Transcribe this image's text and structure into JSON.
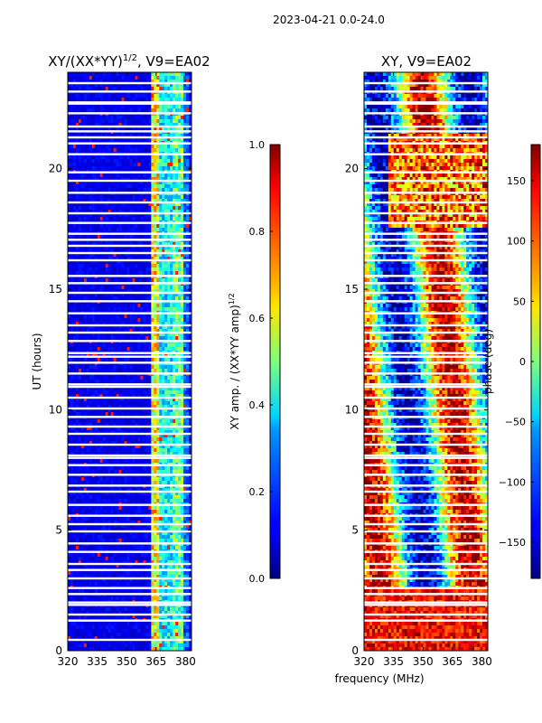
{
  "suptitle": "2023-04-21 0.0-24.0",
  "xlabel_shared": "frequency (MHz)",
  "chart_data": [
    {
      "type": "heatmap",
      "title_main": "XY/(XX*YY)",
      "title_sup": "1/2",
      "title_rest": ", V9=EA02",
      "ylabel": "UT (hours)",
      "xlim": [
        320,
        383
      ],
      "ylim": [
        0,
        24
      ],
      "xticks": [
        320,
        335,
        350,
        365,
        380
      ],
      "yticks": [
        0,
        5,
        10,
        15,
        20
      ],
      "colorbar": {
        "label_main": "XY amp. / (XX*YY amp)",
        "label_sup": "1/2",
        "vmin": 0.0,
        "vmax": 1.0,
        "ticks": [
          "0.0",
          "0.2",
          "0.4",
          "0.6",
          "0.8",
          "1.0"
        ],
        "tick_values": [
          0.0,
          0.2,
          0.4,
          0.6,
          0.8,
          1.0
        ]
      }
    },
    {
      "type": "heatmap",
      "title": "XY, V9=EA02",
      "xlim": [
        320,
        383
      ],
      "ylim": [
        0,
        24
      ],
      "xticks": [
        320,
        335,
        350,
        365,
        380
      ],
      "yticks": [
        0,
        5,
        10,
        15,
        20
      ],
      "colorbar": {
        "label": "phase (deg)",
        "vmin": -180,
        "vmax": 180,
        "ticks": [
          "−150",
          "−100",
          "−50",
          "0",
          "50",
          "100",
          "150"
        ],
        "tick_values": [
          -150,
          -100,
          -50,
          0,
          50,
          100,
          150
        ]
      }
    }
  ],
  "flagged_hours": [
    0.45,
    1.25,
    1.5,
    1.9,
    2.0,
    2.35,
    2.6,
    3.0,
    3.35,
    3.6,
    4.1,
    4.45,
    4.95,
    5.25,
    5.6,
    6.05,
    6.6,
    6.85,
    7.3,
    7.7,
    8.0,
    8.1,
    8.55,
    9.0,
    9.3,
    9.7,
    10.05,
    10.5,
    10.95,
    11.05,
    11.5,
    11.95,
    12.2,
    12.35,
    12.85,
    13.2,
    13.5,
    14.0,
    14.5,
    14.85,
    15.25,
    15.55,
    16.2,
    16.5,
    16.8,
    17.05,
    17.3,
    17.75,
    18.15,
    18.6,
    19.0,
    19.5,
    19.85,
    20.6,
    21.05,
    21.3,
    21.55,
    21.75,
    22.3,
    22.7,
    22.75,
    23.2,
    23.55
  ]
}
